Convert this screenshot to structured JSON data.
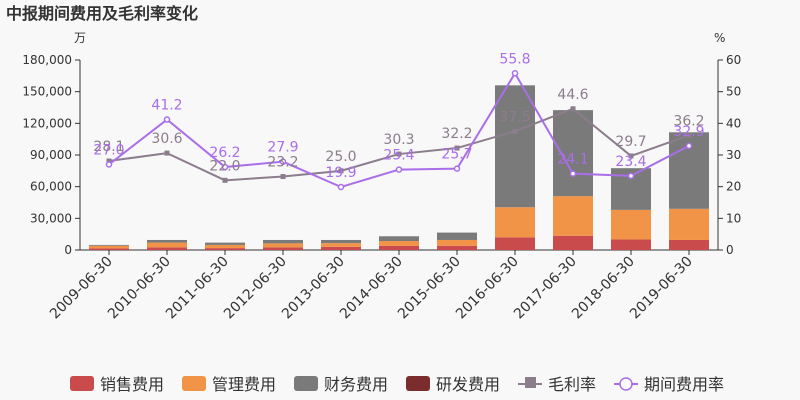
{
  "chart_data": {
    "type": "bar",
    "title": "中报期间费用及毛利率变化",
    "left_unit": "万",
    "right_unit": "%",
    "categories": [
      "2009-06-30",
      "2010-06-30",
      "2011-06-30",
      "2012-06-30",
      "2013-06-30",
      "2014-06-30",
      "2015-06-30",
      "2016-06-30",
      "2017-06-30",
      "2018-06-30",
      "2019-06-30"
    ],
    "y_left": {
      "ylim": [
        0,
        180000
      ],
      "ticks": [
        "0",
        "30,000",
        "60,000",
        "90,000",
        "120,000",
        "150,000",
        "180,000"
      ]
    },
    "y_right": {
      "ylim": [
        0,
        60
      ],
      "ticks": [
        "0",
        "10",
        "20",
        "30",
        "40",
        "50",
        "60"
      ]
    },
    "bar_series": [
      {
        "name": "销售费用",
        "color": "#c94b4b",
        "values": [
          1500,
          2500,
          1800,
          2500,
          3000,
          4000,
          4000,
          12000,
          13500,
          10000,
          9500
        ]
      },
      {
        "name": "管理费用",
        "color": "#f29447",
        "values": [
          2500,
          4500,
          3000,
          3800,
          3500,
          4500,
          5500,
          28500,
          37500,
          28000,
          29500
        ]
      },
      {
        "name": "财务费用",
        "color": "#7a7a7a",
        "values": [
          800,
          2500,
          2200,
          3200,
          3000,
          4500,
          7000,
          115500,
          81500,
          39500,
          72500
        ]
      },
      {
        "name": "研发费用",
        "color": "#7b2d2d",
        "values": [
          0,
          0,
          0,
          0,
          0,
          0,
          0,
          0,
          0,
          0,
          0
        ]
      }
    ],
    "line_series": [
      {
        "name": "毛利率",
        "color": "#8c7d8c",
        "values": [
          28.1,
          30.6,
          22.0,
          23.2,
          25.0,
          30.3,
          32.2,
          37.5,
          44.6,
          29.7,
          36.2
        ],
        "labels": [
          "28.1",
          "30.6",
          "22.0",
          "23.2",
          "25.0",
          "30.3",
          "32.2",
          "37.5",
          "44.6",
          "29.7",
          "36.2"
        ]
      },
      {
        "name": "期间费用率",
        "color": "#a96ee8",
        "values": [
          27.0,
          41.2,
          26.2,
          27.9,
          19.9,
          25.4,
          25.7,
          55.8,
          24.1,
          23.4,
          32.9
        ],
        "labels": [
          "27.0",
          "41.2",
          "26.2",
          "27.9",
          "19.9",
          "25.4",
          "25.7",
          "55.8",
          "24.1",
          "23.4",
          "32.9"
        ]
      }
    ],
    "legend": {
      "placement": "bottom"
    },
    "grid": false
  }
}
